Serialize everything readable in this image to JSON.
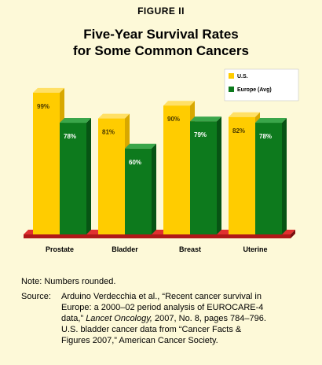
{
  "figure": {
    "label": "FIGURE II",
    "title_line1": "Five-Year Survival Rates",
    "title_line2": "for Some Common Cancers"
  },
  "colors": {
    "background": "#fdf9d8",
    "us_front": "#ffcc00",
    "us_side": "#d8a800",
    "us_top": "#ffe066",
    "europe_front": "#0d7a1d",
    "europe_side": "#075414",
    "europe_top": "#3aa64a",
    "floor": "#b01818",
    "floor_top": "#e03030"
  },
  "chart_data": {
    "type": "bar",
    "categories": [
      "Prostate",
      "Bladder",
      "Breast",
      "Uterine"
    ],
    "series": [
      {
        "name": "U.S.",
        "values": [
          99,
          81,
          90,
          82
        ],
        "labels": [
          "99%",
          "81%",
          "90%",
          "82%"
        ]
      },
      {
        "name": "Europe (Avg)",
        "values": [
          78,
          60,
          79,
          78
        ],
        "labels": [
          "78%",
          "60%",
          "79%",
          "78%"
        ]
      }
    ],
    "ylim": [
      0,
      100
    ],
    "grid": false,
    "legend_position": "top-right",
    "xlabel": "",
    "ylabel": ""
  },
  "note": {
    "label": "Note:",
    "text": "Numbers rounded."
  },
  "source": {
    "label": "Source:",
    "part1": "Arduino Verdecchia et al., “Recent cancer survival in Europe: a 2000–02 period analysis of EUROCARE-4 data,” ",
    "journal": "Lancet Oncology,",
    "part2": " 2007, No. 8, pages 784–796. U.S. bladder cancer data from “Cancer Facts & Figures 2007,” American Cancer Society."
  }
}
